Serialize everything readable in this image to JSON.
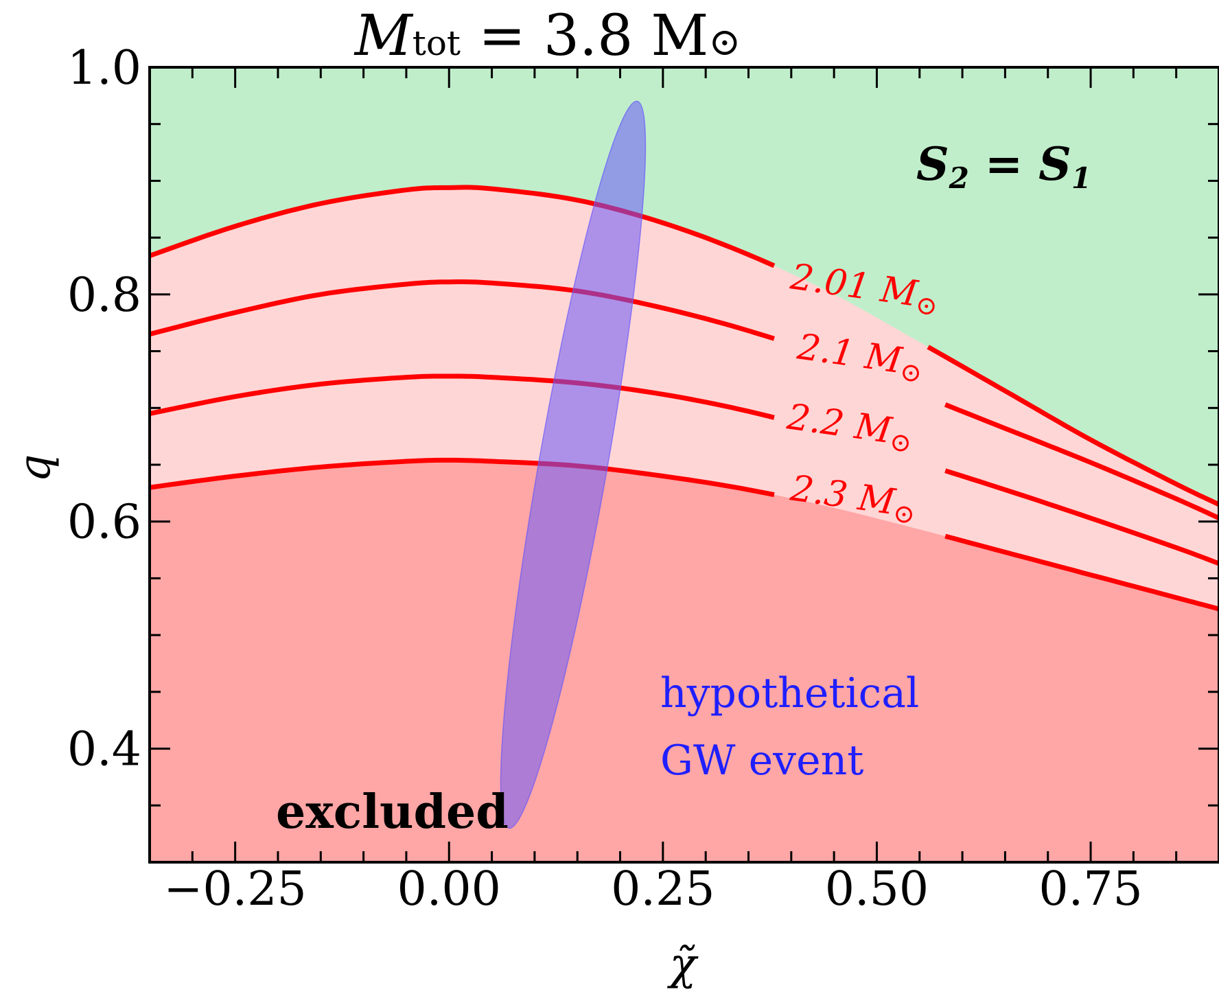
{
  "chart_data": {
    "type": "line",
    "title": {
      "main": "M",
      "sub": "tot",
      "rest": " = 3.8 M",
      "sun": "⊙"
    },
    "xlabel": "χ̃",
    "ylabel": "q",
    "xlim": [
      -0.35,
      0.9
    ],
    "ylim": [
      0.3,
      1.0
    ],
    "xticks": [
      -0.25,
      0.0,
      0.25,
      0.5,
      0.75
    ],
    "xtick_labels": [
      "−0.25",
      "0.00",
      "0.25",
      "0.50",
      "0.75"
    ],
    "yticks": [
      0.4,
      0.6,
      0.8,
      1.0
    ],
    "ytick_labels": [
      "0.4",
      "0.6",
      "0.8",
      "1.0"
    ],
    "colors": {
      "allowed": "#c0eecb",
      "band": "#ffd6d6",
      "excluded": "#ffa6a6",
      "curve": "#ff0000",
      "event": "#6a5af9",
      "event_text": "#1f1fff"
    },
    "series": [
      {
        "name": "2.01 M⊙",
        "label": "2.01 M",
        "x": [
          -0.35,
          -0.25,
          -0.15,
          -0.05,
          0.0,
          0.05,
          0.15,
          0.25,
          0.35,
          0.45,
          0.55,
          0.65,
          0.75,
          0.85,
          0.9
        ],
        "values": [
          0.834,
          0.86,
          0.88,
          0.892,
          0.894,
          0.893,
          0.883,
          0.863,
          0.835,
          0.8,
          0.758,
          0.715,
          0.672,
          0.633,
          0.615
        ]
      },
      {
        "name": "2.1 M⊙",
        "label": "2.1 M",
        "x": [
          -0.35,
          -0.25,
          -0.15,
          -0.05,
          0.0,
          0.05,
          0.15,
          0.25,
          0.35,
          0.45,
          0.55,
          0.65,
          0.75,
          0.85,
          0.9
        ],
        "values": [
          0.765,
          0.784,
          0.8,
          0.809,
          0.811,
          0.81,
          0.803,
          0.788,
          0.768,
          0.743,
          0.712,
          0.682,
          0.652,
          0.62,
          0.603
        ]
      },
      {
        "name": "2.2 M⊙",
        "label": "2.2 M",
        "x": [
          -0.35,
          -0.25,
          -0.15,
          -0.05,
          0.0,
          0.05,
          0.15,
          0.25,
          0.35,
          0.45,
          0.55,
          0.65,
          0.75,
          0.85,
          0.9
        ],
        "values": [
          0.695,
          0.71,
          0.721,
          0.727,
          0.728,
          0.727,
          0.722,
          0.712,
          0.697,
          0.677,
          0.652,
          0.628,
          0.603,
          0.577,
          0.563
        ]
      },
      {
        "name": "2.3 M⊙",
        "label": "2.3 M",
        "x": [
          -0.35,
          -0.25,
          -0.15,
          -0.05,
          0.0,
          0.05,
          0.15,
          0.25,
          0.35,
          0.45,
          0.55,
          0.65,
          0.75,
          0.85,
          0.9
        ],
        "values": [
          0.63,
          0.64,
          0.648,
          0.653,
          0.654,
          0.653,
          0.649,
          0.64,
          0.628,
          0.612,
          0.593,
          0.573,
          0.553,
          0.533,
          0.523
        ]
      }
    ],
    "event": {
      "center": [
        0.145,
        0.65
      ],
      "semi_axes": [
        0.325,
        0.04
      ],
      "angle_deg": -80,
      "label_line1": "hypothetical",
      "label_line2": "GW event"
    },
    "annotations": {
      "top_right": {
        "s1": "S",
        "s1sub": "2",
        "eq": " = ",
        "s2": "S",
        "s2sub": "1"
      },
      "bottom_left": "excluded"
    }
  }
}
